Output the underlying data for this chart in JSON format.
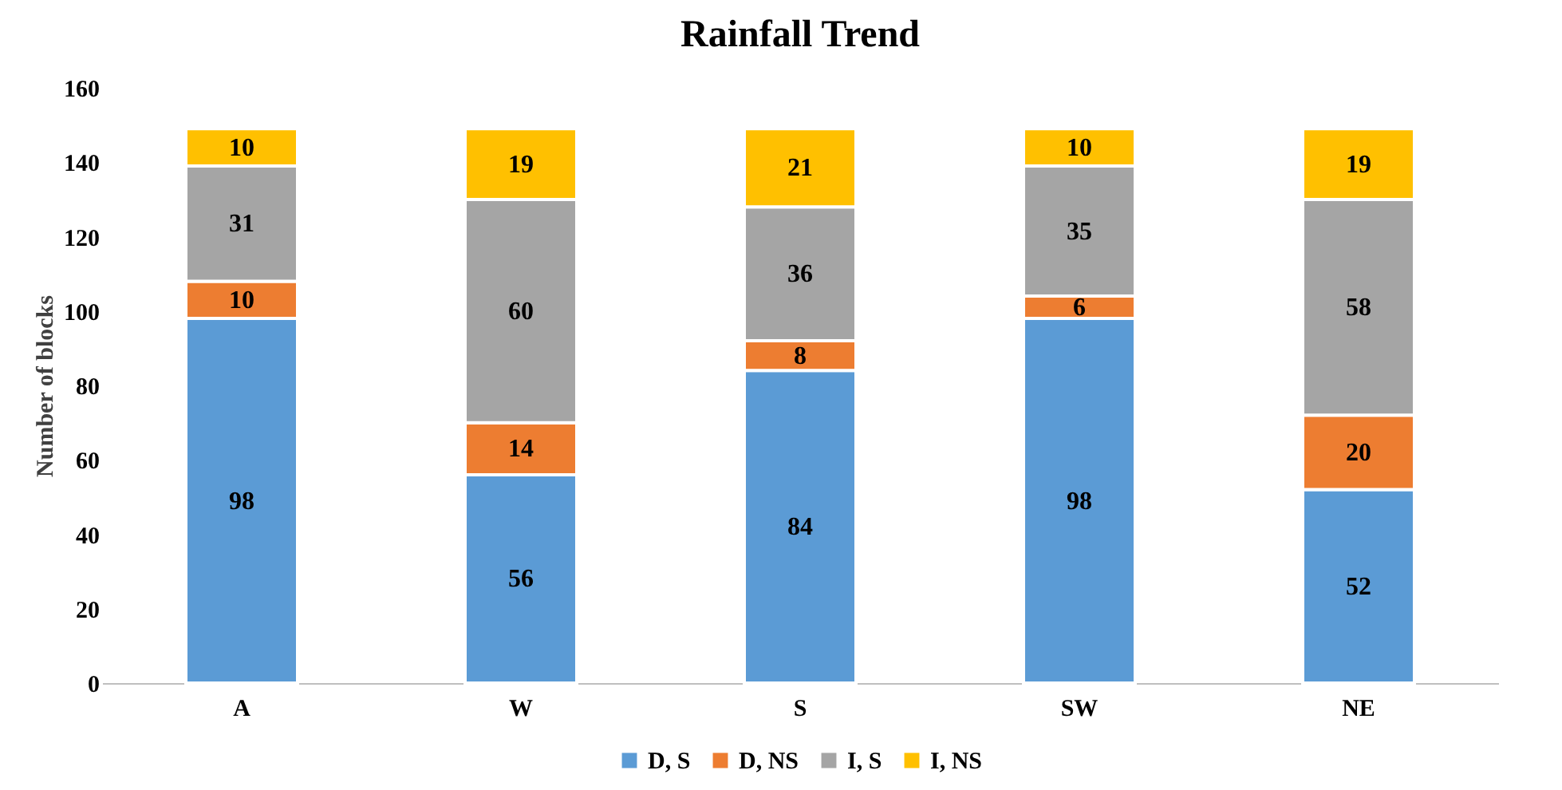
{
  "chart_data": {
    "type": "bar",
    "title": "Rainfall Trend",
    "ylabel": "Number of blocks",
    "categories": [
      "A",
      "W",
      "S",
      "SW",
      "NE"
    ],
    "series": [
      {
        "name": "D, S",
        "color": "#5b9bd5",
        "values": [
          98,
          56,
          84,
          98,
          52
        ]
      },
      {
        "name": "D, NS",
        "color": "#ed7d31",
        "values": [
          10,
          14,
          8,
          6,
          20
        ]
      },
      {
        "name": "I, S",
        "color": "#a5a5a5",
        "values": [
          31,
          60,
          36,
          35,
          58
        ]
      },
      {
        "name": "I, NS",
        "color": "#ffc000",
        "values": [
          10,
          19,
          21,
          10,
          19
        ]
      }
    ],
    "stacked": true,
    "ylim": [
      0,
      160
    ],
    "yticks": [
      0,
      20,
      40,
      60,
      80,
      100,
      120,
      140,
      160
    ],
    "data_labels": true,
    "grid": false,
    "legend": "bottom"
  }
}
